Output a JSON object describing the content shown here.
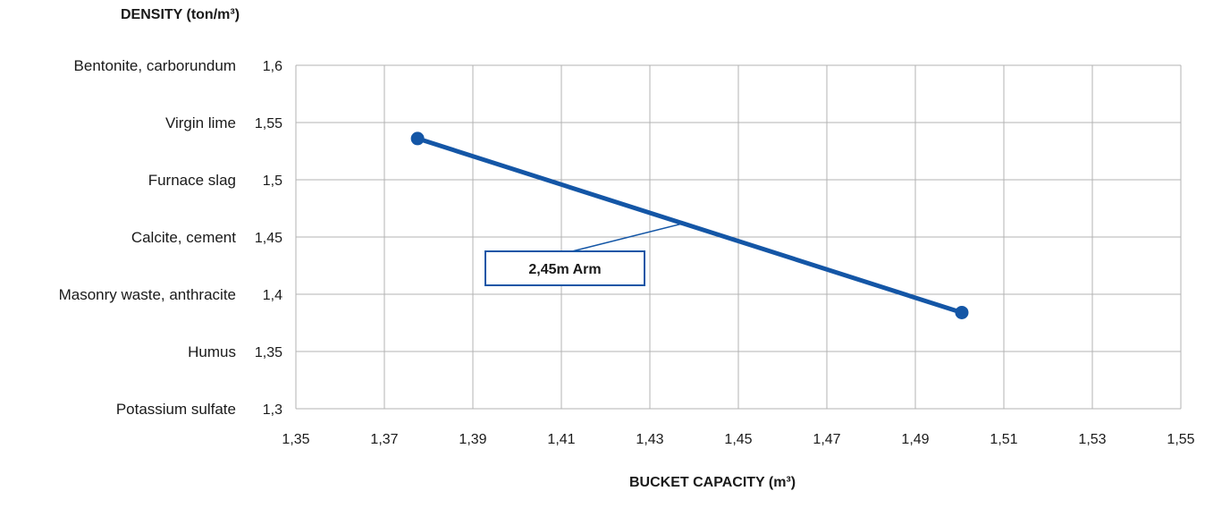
{
  "chart_data": {
    "type": "line",
    "ylabel": "DENSITY (ton/m³)",
    "xlabel": "BUCKET CAPACITY (m³)",
    "xlim": [
      1.35,
      1.55
    ],
    "ylim": [
      1.3,
      1.6
    ],
    "x_ticks": [
      "1,35",
      "1,37",
      "1,39",
      "1,41",
      "1,43",
      "1,45",
      "1,47",
      "1,49",
      "1,51",
      "1,53",
      "1,55"
    ],
    "y_ticks": [
      {
        "value": "1,6",
        "category": "Bentonite, carborundum"
      },
      {
        "value": "1,55",
        "category": "Virgin lime"
      },
      {
        "value": "1,5",
        "category": "Furnace slag"
      },
      {
        "value": "1,45",
        "category": "Calcite, cement"
      },
      {
        "value": "1,4",
        "category": "Masonry waste, anthracite"
      },
      {
        "value": "1,35",
        "category": "Humus"
      },
      {
        "value": "1,3",
        "category": "Potassium sulfate"
      }
    ],
    "grid": true,
    "series": [
      {
        "name": "2,45m Arm",
        "color": "#1456a6",
        "points": [
          {
            "x": 1.3775,
            "y": 1.536
          },
          {
            "x": 1.5005,
            "y": 1.384
          }
        ]
      }
    ],
    "annotation": {
      "text": "2,45m Arm",
      "series": 0,
      "anchor_x": 1.4375
    }
  }
}
